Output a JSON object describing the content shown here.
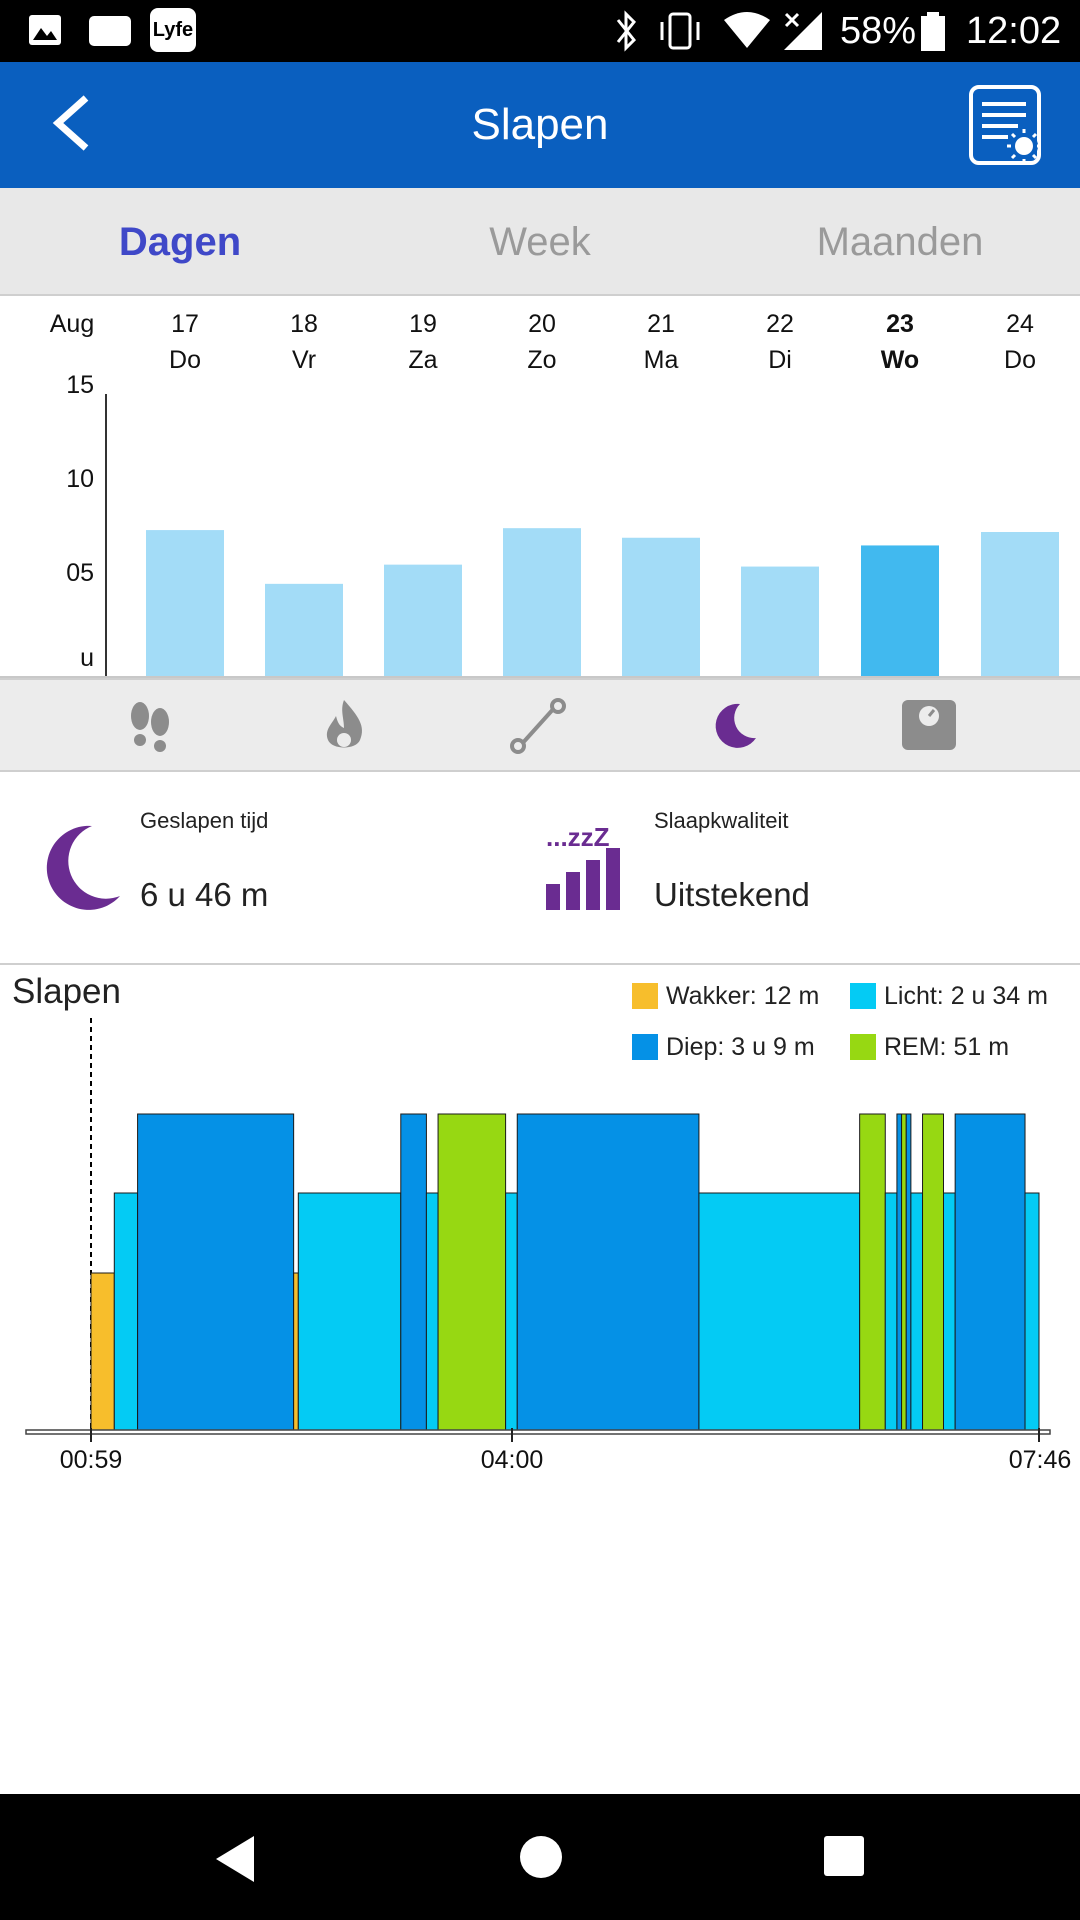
{
  "statusbar": {
    "battery": "58%",
    "time": "12:02",
    "carrier_badge": "Lyfe"
  },
  "appbar": {
    "title": "Slapen"
  },
  "tabs": [
    {
      "label": "Dagen",
      "active": true
    },
    {
      "label": "Week",
      "active": false
    },
    {
      "label": "Maanden",
      "active": false
    }
  ],
  "week_chart": {
    "month_label": "Aug",
    "y_ticks": [
      "15",
      "10",
      "05",
      "u"
    ],
    "days": [
      {
        "num": "17",
        "dow": "Do",
        "bold": false
      },
      {
        "num": "18",
        "dow": "Vr",
        "bold": false
      },
      {
        "num": "19",
        "dow": "Za",
        "bold": false
      },
      {
        "num": "20",
        "dow": "Zo",
        "bold": false
      },
      {
        "num": "21",
        "dow": "Ma",
        "bold": false
      },
      {
        "num": "22",
        "dow": "Di",
        "bold": false
      },
      {
        "num": "23",
        "dow": "Wo",
        "bold": true
      },
      {
        "num": "24",
        "dow": "Do",
        "bold": false
      }
    ]
  },
  "chart_data": [
    {
      "type": "bar",
      "categories": [
        "17 Do",
        "18 Vr",
        "19 Za",
        "20 Zo",
        "21 Ma",
        "22 Di",
        "23 Wo",
        "24 Do"
      ],
      "values": [
        7.6,
        4.8,
        5.8,
        7.7,
        7.2,
        5.7,
        6.8,
        7.5
      ],
      "ylim": [
        0,
        15
      ],
      "highlight_index": 6,
      "colors": {
        "bar": "#a3dcf7",
        "selected": "#41b9ef"
      }
    },
    {
      "type": "area",
      "title": "Slapen",
      "x_ticks": [
        "00:59",
        "04:00",
        "07:46"
      ],
      "x_range_minutes": [
        59,
        466
      ],
      "legend": [
        {
          "name": "Wakker: 12 m",
          "color": "#f7be2c"
        },
        {
          "name": "Licht: 2 u 34 m",
          "color": "#04cbf4"
        },
        {
          "name": "Diep: 3 u 9 m",
          "color": "#0591e6"
        },
        {
          "name": "REM: 51 m",
          "color": "#97d812"
        }
      ],
      "segments": [
        {
          "stage": "wake",
          "start": 59,
          "end": 69
        },
        {
          "stage": "light",
          "start": 69,
          "end": 79
        },
        {
          "stage": "deep",
          "start": 79,
          "end": 146
        },
        {
          "stage": "wake",
          "start": 146,
          "end": 148
        },
        {
          "stage": "light",
          "start": 148,
          "end": 192
        },
        {
          "stage": "deep",
          "start": 192,
          "end": 203
        },
        {
          "stage": "light",
          "start": 203,
          "end": 208
        },
        {
          "stage": "rem",
          "start": 208,
          "end": 237
        },
        {
          "stage": "light",
          "start": 237,
          "end": 242
        },
        {
          "stage": "deep",
          "start": 242,
          "end": 320
        },
        {
          "stage": "light",
          "start": 320,
          "end": 389
        },
        {
          "stage": "rem",
          "start": 389,
          "end": 400
        },
        {
          "stage": "light",
          "start": 400,
          "end": 405
        },
        {
          "stage": "deep",
          "start": 405,
          "end": 407
        },
        {
          "stage": "rem",
          "start": 407,
          "end": 409
        },
        {
          "stage": "deep",
          "start": 409,
          "end": 411
        },
        {
          "stage": "light",
          "start": 411,
          "end": 416
        },
        {
          "stage": "rem",
          "start": 416,
          "end": 425
        },
        {
          "stage": "light",
          "start": 425,
          "end": 430
        },
        {
          "stage": "deep",
          "start": 430,
          "end": 460
        },
        {
          "stage": "light",
          "start": 460,
          "end": 466
        }
      ]
    }
  ],
  "summary": {
    "sleep_time_label": "Geslapen tijd",
    "sleep_time_value": "6 u 46 m",
    "quality_label": "Slaapkwaliteit",
    "quality_value": "Uitstekend",
    "quality_icon_text": "...zzZ"
  },
  "icons": {
    "back": "chevron-left-icon",
    "report": "report-icon",
    "strip": [
      "footsteps-icon",
      "flame-icon",
      "distance-icon",
      "moon-icon",
      "scale-icon"
    ]
  },
  "colors": {
    "appbar": "#0a5fbf",
    "tab_active": "#3f48c8",
    "purple": "#6a2c91"
  }
}
